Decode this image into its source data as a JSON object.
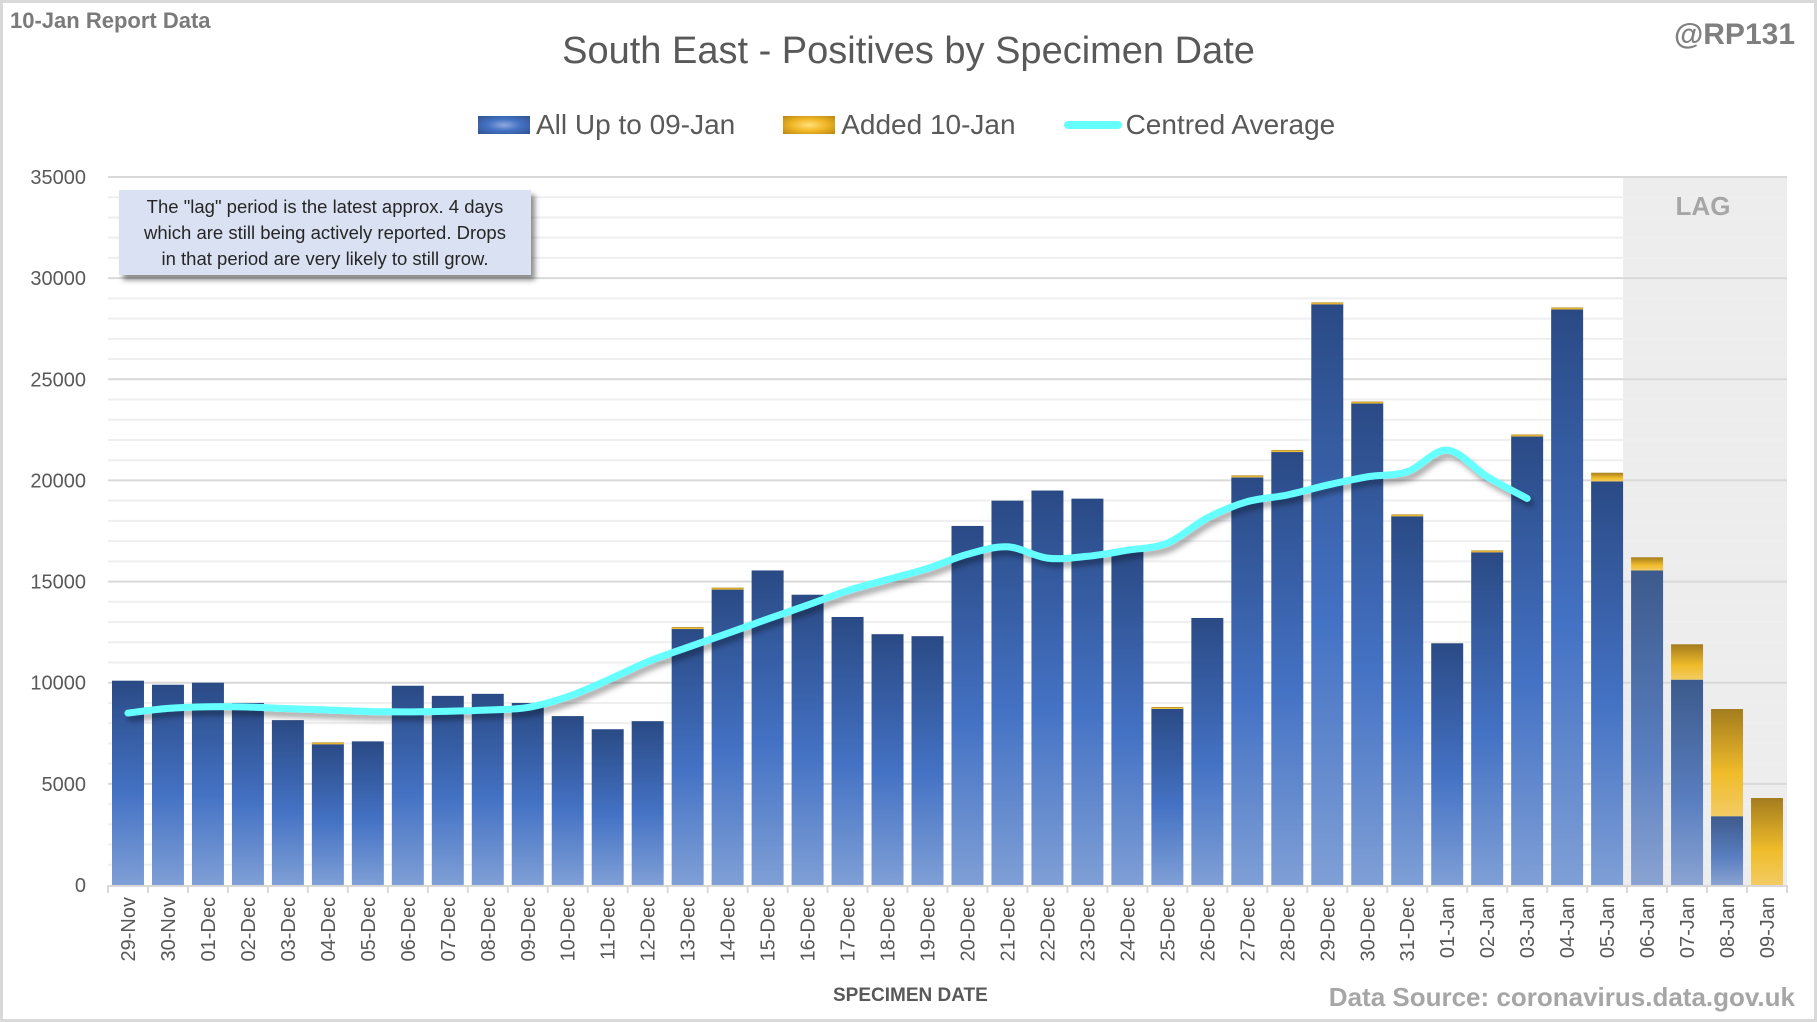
{
  "header": {
    "report_label": "10-Jan Report Data",
    "handle": "@RP131",
    "source": "Data Source: coronavirus.data.gov.uk"
  },
  "annotation": {
    "lines": [
      "The \"lag\" period is the latest approx. 4 days",
      "which are still being actively reported.  Drops",
      "in that period are very likely to still grow."
    ]
  },
  "colors": {
    "base_bar": "#4472c4",
    "base_bar_dark": "#2f528f",
    "added_bar": "#f2b92a",
    "added_bar_dark": "#b8860b",
    "average_line": "#66ffff",
    "lag_shade": "#ededed"
  },
  "chart_data": {
    "type": "bar",
    "stacked": true,
    "title": "South East - Positives by Specimen Date",
    "xlabel": "SPECIMEN DATE",
    "ylabel": "",
    "ylim": [
      0,
      35000
    ],
    "yticks": [
      0,
      5000,
      10000,
      15000,
      20000,
      25000,
      30000,
      35000
    ],
    "ytick_labels": [
      "0",
      "5000",
      "10000",
      "15000",
      "20000",
      "25000",
      "30000",
      "35000"
    ],
    "minor_gridline_step": 1000,
    "grid": true,
    "legend_position": "top",
    "categories": [
      "29-Nov",
      "30-Nov",
      "01-Dec",
      "02-Dec",
      "03-Dec",
      "04-Dec",
      "05-Dec",
      "06-Dec",
      "07-Dec",
      "08-Dec",
      "09-Dec",
      "10-Dec",
      "11-Dec",
      "12-Dec",
      "13-Dec",
      "14-Dec",
      "15-Dec",
      "16-Dec",
      "17-Dec",
      "18-Dec",
      "19-Dec",
      "20-Dec",
      "21-Dec",
      "22-Dec",
      "23-Dec",
      "24-Dec",
      "25-Dec",
      "26-Dec",
      "27-Dec",
      "28-Dec",
      "29-Dec",
      "30-Dec",
      "31-Dec",
      "01-Jan",
      "02-Jan",
      "03-Jan",
      "04-Jan",
      "05-Jan",
      "06-Jan",
      "07-Jan",
      "08-Jan",
      "09-Jan"
    ],
    "series": [
      {
        "name": "All Up to 09-Jan",
        "kind": "bar",
        "values": [
          10100,
          9900,
          10000,
          9000,
          8150,
          7000,
          7100,
          9850,
          9350,
          9450,
          9000,
          8350,
          7700,
          8100,
          12700,
          14650,
          15550,
          14350,
          13250,
          12400,
          12300,
          17750,
          19000,
          19500,
          19100,
          16500,
          8750,
          13200,
          20150,
          21420,
          28720,
          23840,
          18250,
          11950,
          16470,
          22210,
          28450,
          19950,
          15550,
          10150,
          3400,
          0
        ]
      },
      {
        "name": "Added 10-Jan",
        "kind": "bar",
        "values": [
          0,
          0,
          0,
          0,
          0,
          50,
          0,
          0,
          0,
          0,
          0,
          0,
          0,
          0,
          50,
          50,
          0,
          0,
          0,
          0,
          0,
          0,
          0,
          0,
          0,
          0,
          50,
          0,
          100,
          80,
          80,
          60,
          70,
          0,
          70,
          60,
          100,
          430,
          650,
          1750,
          5300,
          4300
        ]
      },
      {
        "name": "Centred Average",
        "kind": "line",
        "values": [
          8500,
          8730,
          8810,
          8800,
          8720,
          8650,
          8580,
          8560,
          8590,
          8650,
          8780,
          9310,
          10130,
          11040,
          11750,
          12440,
          13150,
          13840,
          14550,
          15100,
          15650,
          16350,
          16720,
          16160,
          16250,
          16550,
          16900,
          18150,
          18950,
          19280,
          19770,
          20180,
          20430,
          21500,
          20180,
          19110,
          null,
          null,
          null,
          null,
          null,
          null
        ]
      }
    ],
    "annotations": [
      {
        "text": "LAG",
        "range": [
          "06-Jan",
          "09-Jan"
        ]
      }
    ]
  }
}
